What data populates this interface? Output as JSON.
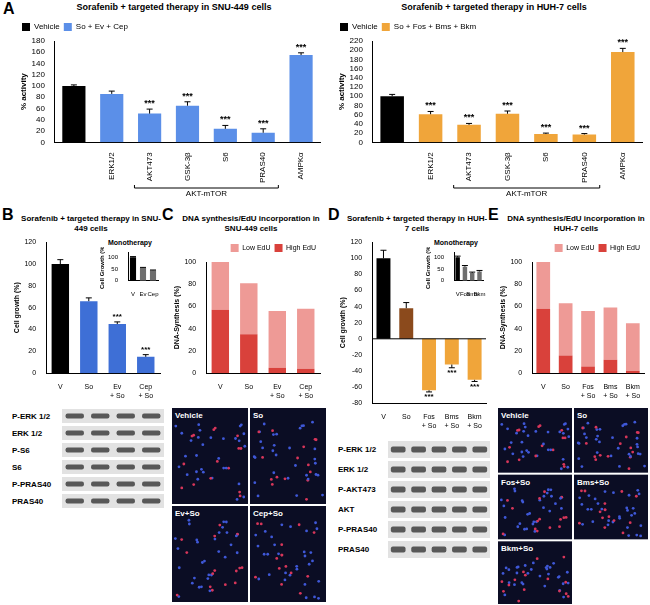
{
  "chart_data": [
    {
      "panel": "A",
      "type": "bar",
      "title": "Sorafenib + targeted therapy in SNU-449 cells",
      "y_label": "% activity",
      "categories": [
        null,
        "ERK1/2",
        "AKT473",
        "GSK-3β",
        "S6",
        "PRAS40",
        "AMPKα"
      ],
      "groups": [
        {
          "label": "AKT-mTOR",
          "categories": [
            "AKT473",
            "GSK-3β",
            "S6",
            "PRAS40"
          ]
        }
      ],
      "series": [
        {
          "name": "Vehicle",
          "color": "#000000",
          "values": [
            100,
            null,
            null,
            null,
            null,
            null,
            null
          ],
          "errors": [
            2,
            null,
            null,
            null,
            null,
            null,
            null
          ]
        },
        {
          "name": "So + Ev + Cep",
          "color": "#5b8fe8",
          "values": [
            null,
            86,
            51,
            65,
            24,
            17,
            155
          ],
          "errors": [
            null,
            5,
            8,
            7,
            6,
            7,
            4
          ],
          "annotations": [
            null,
            null,
            "***",
            "***",
            "***",
            "***",
            "***"
          ]
        }
      ],
      "ylim": [
        0,
        180
      ],
      "yticks": [
        0,
        20,
        40,
        60,
        80,
        100,
        120,
        140,
        160,
        180
      ],
      "grid": false,
      "legend": "top-left"
    },
    {
      "panel": "A",
      "type": "bar",
      "title": "Sorafenib + targeted therapy in HUH-7 cells",
      "y_label": "% activity",
      "categories": [
        null,
        "ERK1/2",
        "AKT473",
        "GSK-3β",
        "S6",
        "PRAS40",
        "AMPKα"
      ],
      "groups": [
        {
          "label": "AKT-mTOR",
          "categories": [
            "AKT473",
            "GSK-3β",
            "S6",
            "PRAS40"
          ]
        }
      ],
      "series": [
        {
          "name": "Vehicle",
          "color": "#000000",
          "values": [
            100,
            null,
            null,
            null,
            null,
            null,
            null
          ],
          "errors": [
            4,
            null,
            null,
            null,
            null,
            null,
            null
          ]
        },
        {
          "name": "So + Fos + Bms + Bkm",
          "color": "#f0a53a",
          "values": [
            null,
            61,
            38,
            62,
            18,
            17,
            196
          ],
          "errors": [
            null,
            6,
            3,
            6,
            2,
            2,
            8
          ],
          "annotations": [
            null,
            "***",
            "***",
            "***",
            "***",
            "***",
            "***"
          ]
        }
      ],
      "ylim": [
        0,
        220
      ],
      "yticks": [
        0,
        20,
        40,
        60,
        80,
        100,
        120,
        140,
        160,
        180,
        200,
        220
      ],
      "grid": false,
      "legend": "top-left"
    },
    {
      "panel": "B",
      "type": "bar",
      "title": "Sorafenib + targeted therapy in SNU-449 cells",
      "y_label": "Cell growth (%)",
      "categories": [
        "V",
        "So",
        "Ev + So",
        "Cep + So"
      ],
      "values": [
        100,
        66,
        45,
        15
      ],
      "errors": [
        4,
        3,
        2,
        2
      ],
      "annotations": [
        null,
        null,
        "***",
        "***"
      ],
      "colors": [
        "#000000",
        "#3e6fd6",
        "#3e6fd6",
        "#3e6fd6"
      ],
      "ylim": [
        0,
        120
      ],
      "yticks": [
        0,
        20,
        40,
        60,
        80,
        100,
        120
      ],
      "grid": false,
      "inset": {
        "type": "bar",
        "title": "Monotherapy",
        "y_label": "Cell Growth (%)",
        "categories": [
          "V",
          "Ev",
          "Cep"
        ],
        "values": [
          100,
          55,
          45
        ],
        "errors": [
          3,
          2,
          1
        ],
        "colors": [
          "#000000",
          "#6e6e6e",
          "#6e6e6e"
        ],
        "ylim": [
          0,
          120
        ],
        "yticks": [
          0,
          50,
          100
        ],
        "grid": false
      }
    },
    {
      "panel": "C",
      "type": "bar",
      "title": "DNA synthesis/EdU incorporation in SNU-449 cells",
      "y_label": "DNA-Synthesis (%)",
      "categories": [
        "V",
        "So",
        "Ev + So",
        "Cep + So"
      ],
      "stacked": true,
      "series": [
        {
          "name": "High EdU",
          "color": "#d9413b",
          "values": [
            57,
            35,
            5,
            4
          ]
        },
        {
          "name": "Low EdU",
          "color": "#ee9a96",
          "values": [
            43,
            46,
            51,
            54
          ]
        }
      ],
      "ylim": [
        0,
        100
      ],
      "yticks": [
        0,
        20,
        40,
        60,
        80,
        100
      ],
      "grid": false,
      "legend": "top-right"
    },
    {
      "panel": "D",
      "type": "bar",
      "title": "Sorafenib + targeted therapy in HUH-7 cells",
      "y_label": "Cell growth (%)",
      "categories": [
        "V",
        "So",
        "Fos + So",
        "Bms + So",
        "Bkm + So"
      ],
      "values": [
        100,
        38,
        -64,
        -32,
        -51
      ],
      "errors": [
        10,
        7,
        2,
        4,
        2
      ],
      "annotations": [
        null,
        null,
        "***",
        "***",
        "***"
      ],
      "colors": [
        "#000000",
        "#8b4a1c",
        "#f0a53a",
        "#f0a53a",
        "#f0a53a"
      ],
      "ylim": [
        -80,
        120
      ],
      "yticks": [
        -80,
        -60,
        -40,
        -20,
        0,
        20,
        40,
        60,
        80,
        100,
        120
      ],
      "grid": false,
      "inset": {
        "type": "bar",
        "title": "Monotherapy",
        "y_label": "Cell Growth (%)",
        "categories": [
          "V",
          "Fos",
          "Bms",
          "Bkm"
        ],
        "values": [
          100,
          60,
          33,
          40
        ],
        "errors": [
          5,
          5,
          4,
          4
        ],
        "colors": [
          "#000000",
          "#6e6e6e",
          "#6e6e6e",
          "#6e6e6e"
        ],
        "ylim": [
          0,
          120
        ],
        "yticks": [
          0,
          50,
          100
        ],
        "grid": false
      }
    },
    {
      "panel": "E",
      "type": "bar",
      "title": "DNA synthesis/EdU incorporation in HUH-7 cells",
      "y_label": "DNA-Synthesis (%)",
      "categories": [
        "V",
        "So",
        "Fos + So",
        "Bms + So",
        "Bkm + So"
      ],
      "stacked": true,
      "series": [
        {
          "name": "High EdU",
          "color": "#d9413b",
          "values": [
            58,
            16,
            6,
            12,
            2
          ]
        },
        {
          "name": "Low EdU",
          "color": "#ee9a96",
          "values": [
            42,
            47,
            50,
            47,
            43
          ]
        }
      ],
      "ylim": [
        0,
        100
      ],
      "yticks": [
        0,
        20,
        40,
        60,
        80,
        100
      ],
      "grid": false,
      "legend": "top-right"
    }
  ],
  "blots": [
    {
      "panel": "B",
      "rows": [
        "P-ERK 1/2",
        "ERK 1/2",
        "P-S6",
        "S6",
        "P-PRAS40",
        "PRAS40"
      ]
    },
    {
      "panel": "D",
      "rows": [
        "P-ERK 1/2",
        "ERK 1/2",
        "P-AKT473",
        "AKT",
        "P-PRAS40",
        "PRAS40"
      ]
    }
  ],
  "micrographs": [
    {
      "panel": "C",
      "labels": [
        "Vehicle",
        "So",
        "Ev+So",
        "Cep+So"
      ]
    },
    {
      "panel": "E",
      "labels": [
        "Vehicle",
        "So",
        "Fos+So",
        "Bms+So",
        "Bkm+So"
      ]
    }
  ]
}
